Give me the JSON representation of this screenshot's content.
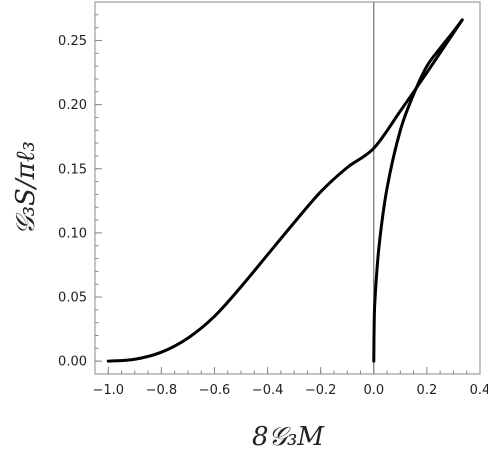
{
  "chart_data": {
    "type": "line",
    "xlabel": "8𝒢₃M",
    "ylabel": "𝒢₃S/πℓ₃",
    "xlim": [
      -1.05,
      0.4
    ],
    "ylim": [
      -0.01,
      0.28
    ],
    "x_ticks": [
      -1.0,
      -0.8,
      -0.6,
      -0.4,
      -0.2,
      0.0,
      0.2,
      0.4
    ],
    "x_tick_labels": [
      "−1.0",
      "−0.8",
      "−0.6",
      "−0.4",
      "−0.2",
      "0.0",
      "0.2",
      "0.4"
    ],
    "y_ticks": [
      0.0,
      0.05,
      0.1,
      0.15,
      0.2,
      0.25
    ],
    "y_tick_labels": [
      "0.00",
      "0.05",
      "0.10",
      "0.15",
      "0.20",
      "0.25"
    ],
    "vertical_line_x": 0.0,
    "grid": false,
    "series": [
      {
        "values": [
          [
            -1.0,
            0.0
          ],
          [
            -0.9,
            0.0015
          ],
          [
            -0.8,
            0.007
          ],
          [
            -0.7,
            0.018
          ],
          [
            -0.6,
            0.035
          ],
          [
            -0.5,
            0.058
          ],
          [
            -0.4,
            0.083
          ],
          [
            -0.3,
            0.108
          ],
          [
            -0.2,
            0.132
          ],
          [
            -0.1,
            0.151
          ],
          [
            0.0,
            0.166
          ],
          [
            0.1,
            0.195
          ],
          [
            0.2,
            0.225
          ],
          [
            0.333,
            0.266
          ]
        ]
      },
      {
        "values": [
          [
            0.0,
            0.0
          ],
          [
            0.0015,
            0.03
          ],
          [
            0.005,
            0.05
          ],
          [
            0.02,
            0.09
          ],
          [
            0.05,
            0.135
          ],
          [
            0.1,
            0.18
          ],
          [
            0.15,
            0.208
          ],
          [
            0.2,
            0.23
          ],
          [
            0.25,
            0.244
          ],
          [
            0.3,
            0.257
          ],
          [
            0.333,
            0.266
          ]
        ]
      }
    ]
  }
}
